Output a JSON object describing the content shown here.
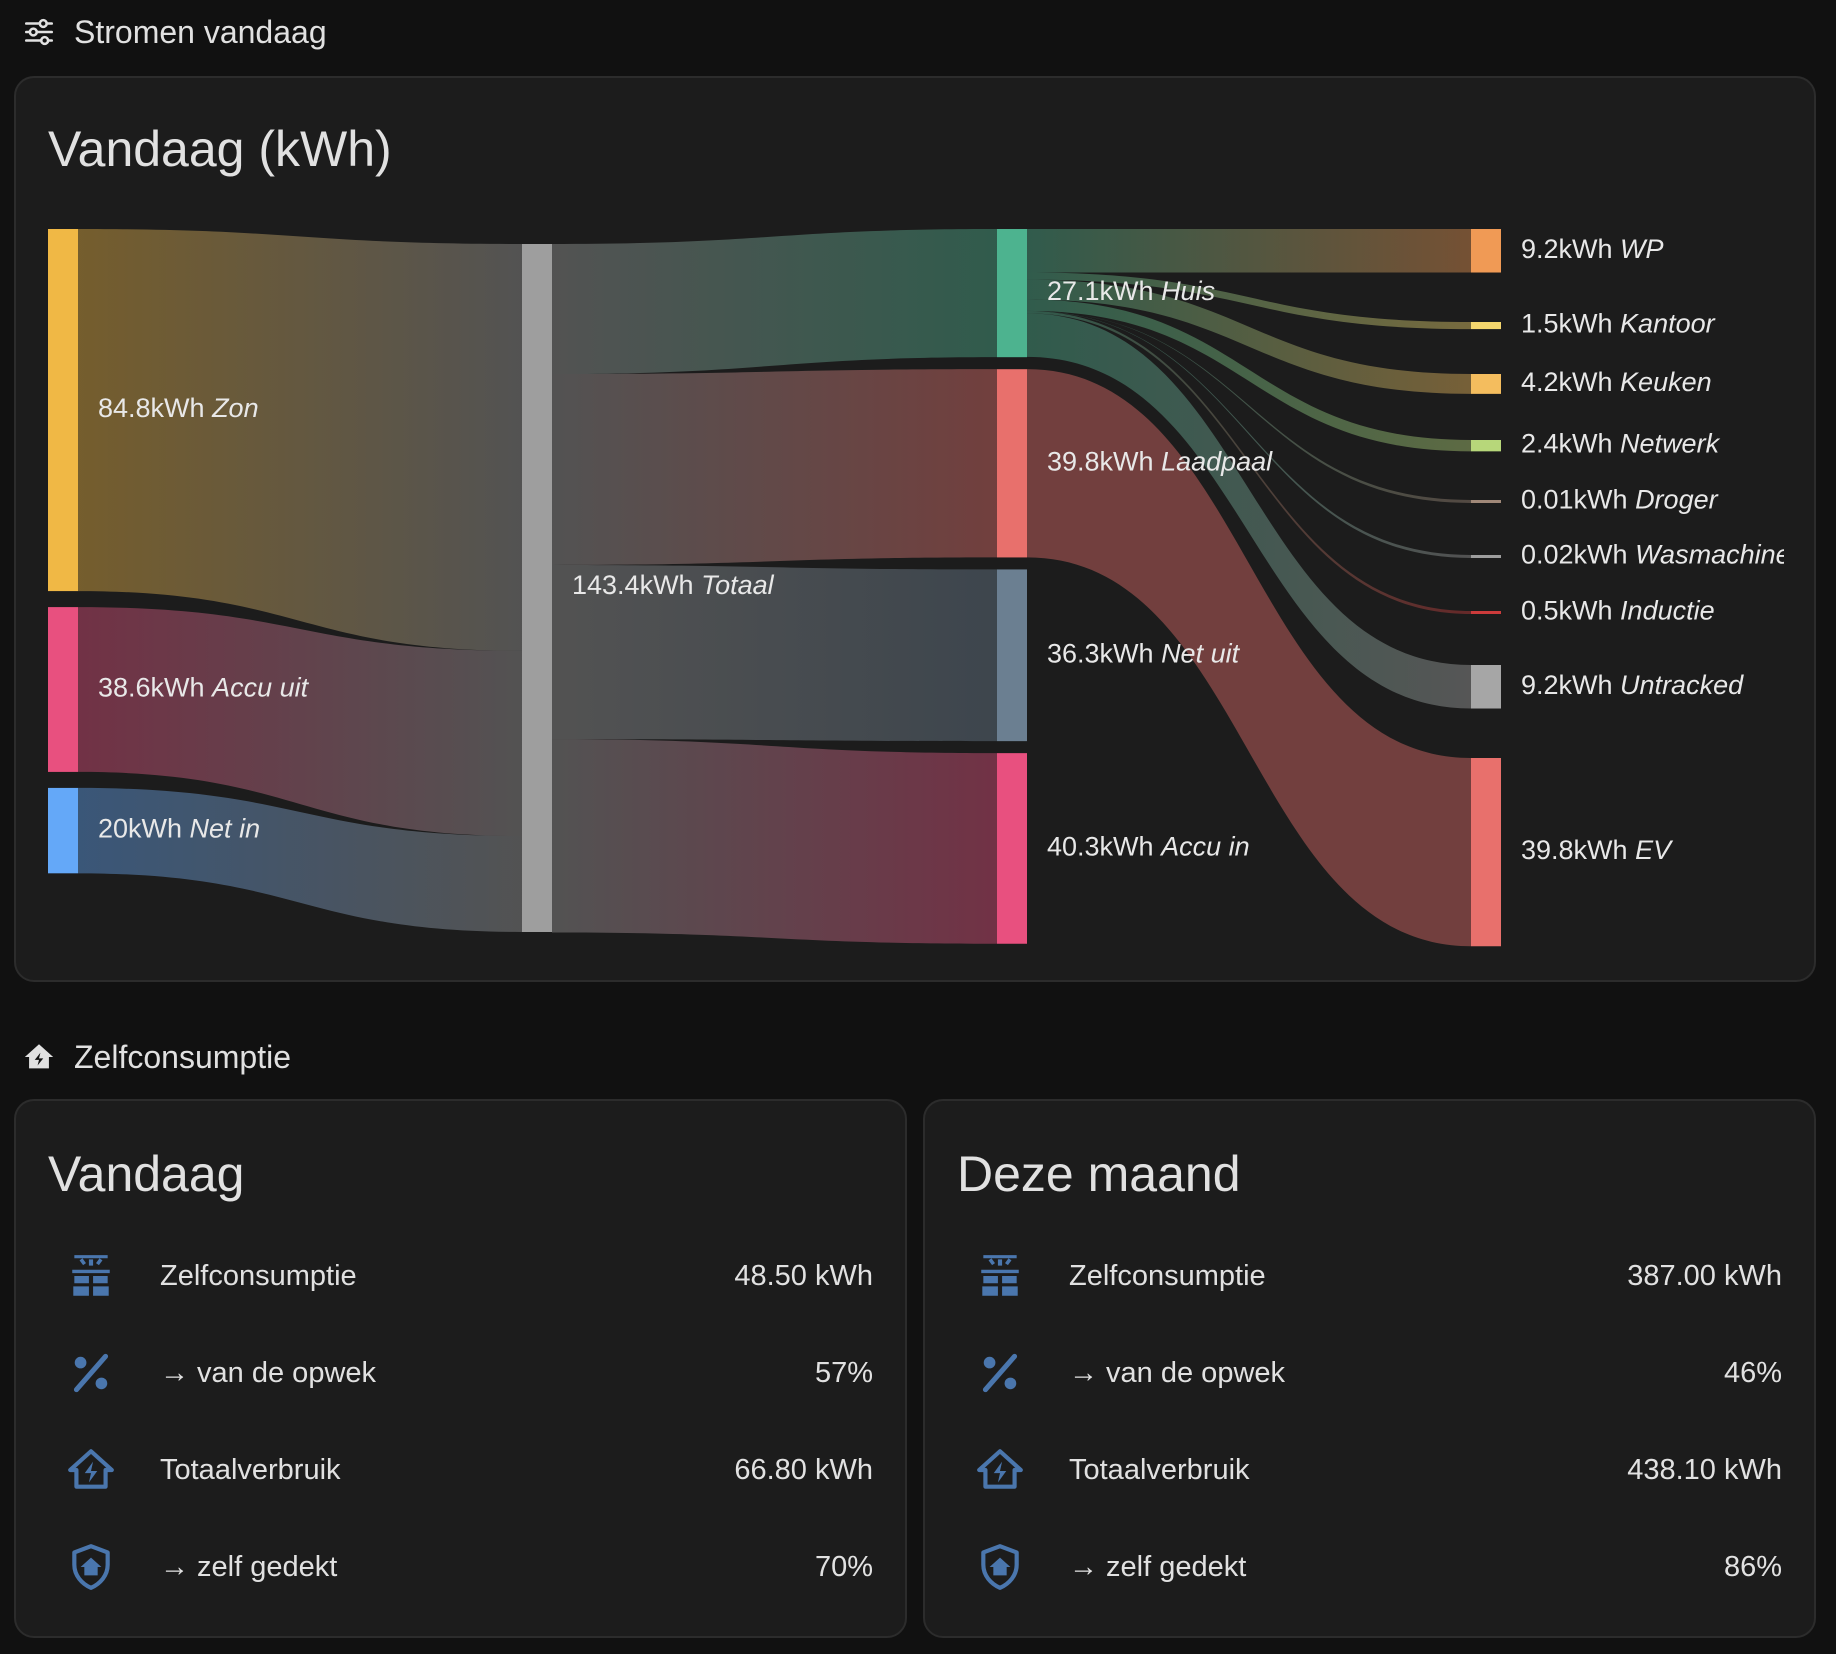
{
  "sections": {
    "flows": {
      "title": "Stromen vandaag",
      "icon": "sliders-icon"
    },
    "self": {
      "title": "Zelfconsumptie",
      "icon": "home-lightning-icon"
    }
  },
  "sankey_card": {
    "title": "Vandaag (kWh)"
  },
  "colors": {
    "zon": "#f0b845",
    "accu_uit": "#e8507f",
    "net_in": "#64a8f8",
    "totaal": "#9e9e9e",
    "huis": "#4db38f",
    "laadpaal": "#e8706c",
    "net_uit": "#6b7f91",
    "accu_in": "#e8507f",
    "wp": "#f09a55",
    "kantoor": "#f5d76e",
    "keuken": "#f4bd5e",
    "netwerk": "#b7d77a",
    "droger": "#a08878",
    "wasmachine": "#9d9d9d",
    "inductie": "#cc3b3b",
    "untracked": "#a6a6a6",
    "ev": "#e8706c",
    "icon_blue": "#4a76ad"
  },
  "chart_data": {
    "type": "sankey",
    "title": "Vandaag (kWh)",
    "unit": "kWh",
    "nodes": [
      {
        "id": "zon",
        "label_value": "84.8kWh",
        "label_name": "Zon",
        "value": 84.8,
        "column": 0
      },
      {
        "id": "accu_uit",
        "label_value": "38.6kWh",
        "label_name": "Accu uit",
        "value": 38.6,
        "column": 0
      },
      {
        "id": "net_in",
        "label_value": "20kWh",
        "label_name": "Net in",
        "value": 20,
        "column": 0
      },
      {
        "id": "totaal",
        "label_value": "143.4kWh",
        "label_name": "Totaal",
        "value": 143.4,
        "column": 1
      },
      {
        "id": "huis",
        "label_value": "27.1kWh",
        "label_name": "Huis",
        "value": 27.1,
        "column": 2
      },
      {
        "id": "laadpaal",
        "label_value": "39.8kWh",
        "label_name": "Laadpaal",
        "value": 39.8,
        "column": 2
      },
      {
        "id": "net_uit",
        "label_value": "36.3kWh",
        "label_name": "Net uit",
        "value": 36.3,
        "column": 2
      },
      {
        "id": "accu_in",
        "label_value": "40.3kWh",
        "label_name": "Accu in",
        "value": 40.3,
        "column": 2
      },
      {
        "id": "wp",
        "label_value": "9.2kWh",
        "label_name": "WP",
        "value": 9.2,
        "column": 3
      },
      {
        "id": "kantoor",
        "label_value": "1.5kWh",
        "label_name": "Kantoor",
        "value": 1.5,
        "column": 3
      },
      {
        "id": "keuken",
        "label_value": "4.2kWh",
        "label_name": "Keuken",
        "value": 4.2,
        "column": 3
      },
      {
        "id": "netwerk",
        "label_value": "2.4kWh",
        "label_name": "Netwerk",
        "value": 2.4,
        "column": 3
      },
      {
        "id": "droger",
        "label_value": "0.01kWh",
        "label_name": "Droger",
        "value": 0.01,
        "column": 3
      },
      {
        "id": "wasmachine",
        "label_value": "0.02kWh",
        "label_name": "Wasmachine",
        "value": 0.02,
        "column": 3
      },
      {
        "id": "inductie",
        "label_value": "0.5kWh",
        "label_name": "Inductie",
        "value": 0.5,
        "column": 3
      },
      {
        "id": "untracked",
        "label_value": "9.2kWh",
        "label_name": "Untracked",
        "value": 9.2,
        "column": 3
      },
      {
        "id": "ev",
        "label_value": "39.8kWh",
        "label_name": "EV",
        "value": 39.8,
        "column": 3
      }
    ],
    "links": [
      {
        "source": "zon",
        "target": "totaal",
        "value": 84.8
      },
      {
        "source": "accu_uit",
        "target": "totaal",
        "value": 38.6
      },
      {
        "source": "net_in",
        "target": "totaal",
        "value": 20
      },
      {
        "source": "totaal",
        "target": "huis",
        "value": 27.1
      },
      {
        "source": "totaal",
        "target": "laadpaal",
        "value": 39.8
      },
      {
        "source": "totaal",
        "target": "net_uit",
        "value": 36.3
      },
      {
        "source": "totaal",
        "target": "accu_in",
        "value": 40.3
      },
      {
        "source": "huis",
        "target": "wp",
        "value": 9.2
      },
      {
        "source": "huis",
        "target": "kantoor",
        "value": 1.5
      },
      {
        "source": "huis",
        "target": "keuken",
        "value": 4.2
      },
      {
        "source": "huis",
        "target": "netwerk",
        "value": 2.4
      },
      {
        "source": "huis",
        "target": "droger",
        "value": 0.01
      },
      {
        "source": "huis",
        "target": "wasmachine",
        "value": 0.02
      },
      {
        "source": "huis",
        "target": "inductie",
        "value": 0.5
      },
      {
        "source": "huis",
        "target": "untracked",
        "value": 9.2
      },
      {
        "source": "laadpaal",
        "target": "ev",
        "value": 39.8
      }
    ]
  },
  "stats_today": {
    "title": "Vandaag",
    "rows": [
      {
        "icon": "solar-panel-icon",
        "label": "Zelfconsumptie",
        "value": "48.50 kWh"
      },
      {
        "icon": "percent-icon",
        "label": "→ van de opwek",
        "value": "57%"
      },
      {
        "icon": "home-lightning-icon",
        "label": "Totaalverbruik",
        "value": "66.80 kWh"
      },
      {
        "icon": "shield-home-icon",
        "label": "→ zelf gedekt",
        "value": "70%"
      }
    ]
  },
  "stats_month": {
    "title": "Deze maand",
    "rows": [
      {
        "icon": "solar-panel-icon",
        "label": "Zelfconsumptie",
        "value": "387.00 kWh"
      },
      {
        "icon": "percent-icon",
        "label": "→ van de opwek",
        "value": "46%"
      },
      {
        "icon": "home-lightning-icon",
        "label": "Totaalverbruik",
        "value": "438.10 kWh"
      },
      {
        "icon": "shield-home-icon",
        "label": "→ zelf gedekt",
        "value": "86%"
      }
    ]
  }
}
